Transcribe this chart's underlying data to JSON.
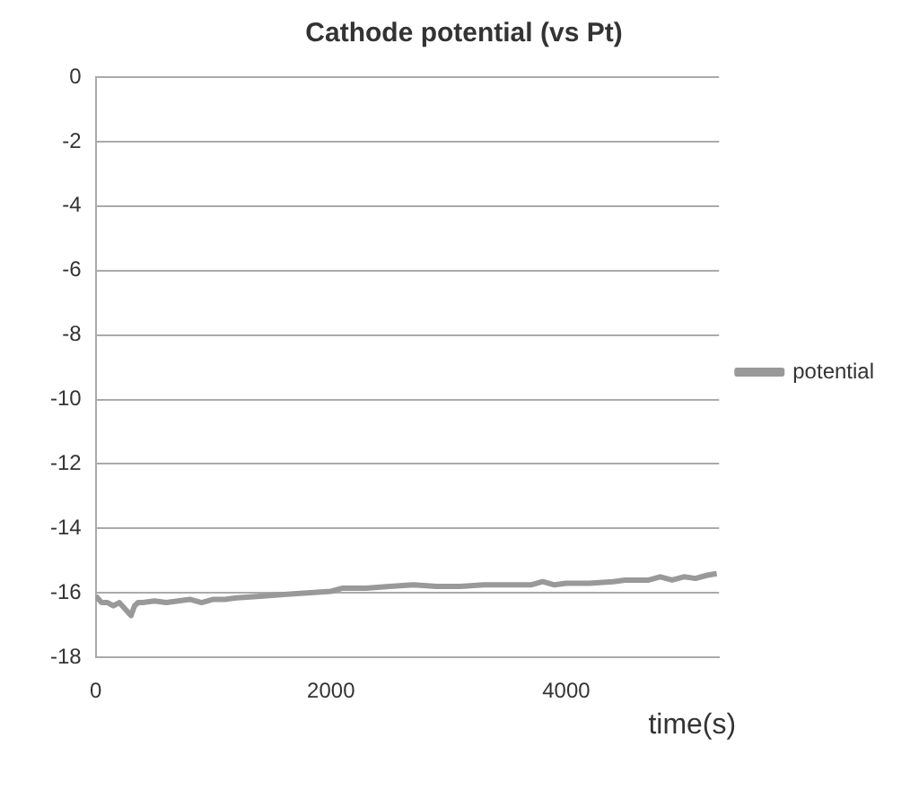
{
  "chart_data": {
    "type": "line",
    "title": "Cathode potential (vs Pt)",
    "xlabel": "time(s)",
    "x": [
      0,
      50,
      100,
      150,
      200,
      250,
      300,
      330,
      360,
      400,
      500,
      600,
      700,
      800,
      900,
      1000,
      1100,
      1200,
      1400,
      1600,
      1800,
      2000,
      2100,
      2300,
      2500,
      2700,
      2900,
      3100,
      3300,
      3500,
      3700,
      3800,
      3900,
      4000,
      4200,
      4400,
      4500,
      4700,
      4800,
      4900,
      5000,
      5100,
      5200,
      5280
    ],
    "series": [
      {
        "name": "potential",
        "color": "#999999",
        "values": [
          -16.1,
          -16.3,
          -16.3,
          -16.4,
          -16.3,
          -16.5,
          -16.7,
          -16.4,
          -16.3,
          -16.3,
          -16.25,
          -16.3,
          -16.25,
          -16.2,
          -16.3,
          -16.2,
          -16.2,
          -16.15,
          -16.1,
          -16.05,
          -16.0,
          -15.95,
          -15.85,
          -15.85,
          -15.8,
          -15.75,
          -15.8,
          -15.8,
          -15.75,
          -15.75,
          -15.75,
          -15.65,
          -15.75,
          -15.7,
          -15.7,
          -15.65,
          -15.6,
          -15.6,
          -15.5,
          -15.6,
          -15.5,
          -15.55,
          -15.45,
          -15.4
        ]
      }
    ],
    "xlim": [
      0,
      5300
    ],
    "xticks": [
      0,
      2000,
      4000
    ],
    "ylim": [
      -18,
      0
    ],
    "yticks": [
      0,
      -2,
      -4,
      -6,
      -8,
      -10,
      -12,
      -14,
      -16,
      -18
    ],
    "grid": "y",
    "legend": "right",
    "marker": "none",
    "line_style": "solid"
  }
}
